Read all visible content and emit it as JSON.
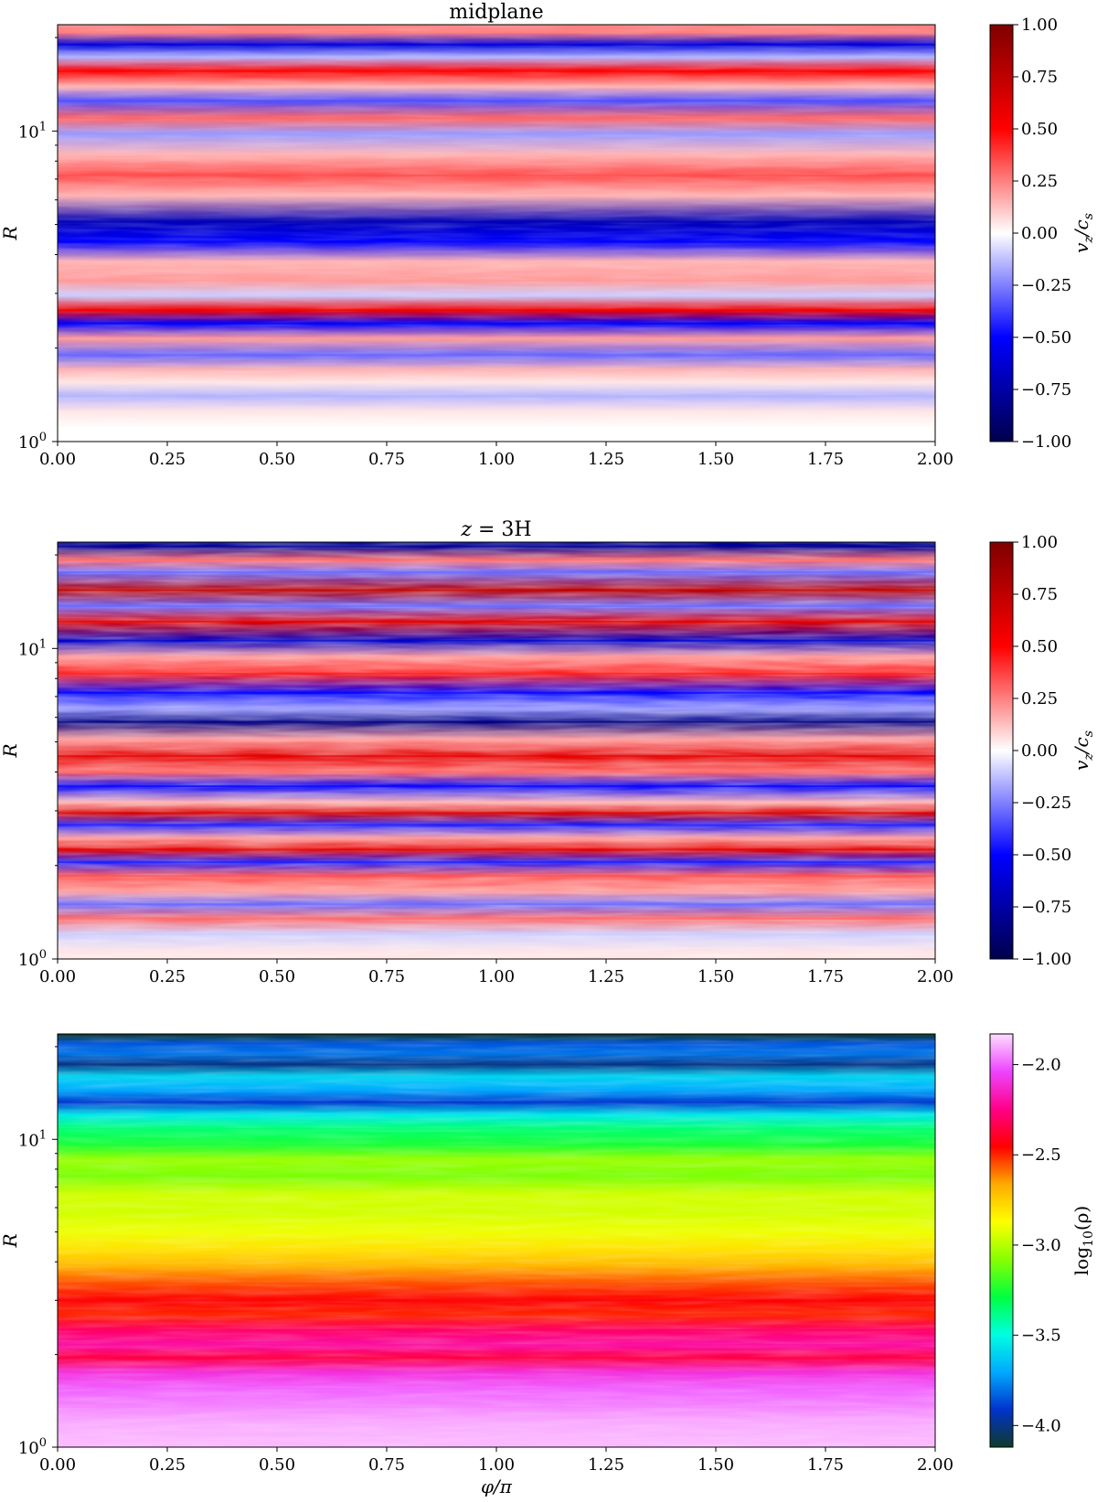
{
  "figure": {
    "xlabel": "φ/π"
  },
  "colormaps": {
    "seismic": [
      "#00004c",
      "#0000ff",
      "#ffffff",
      "#ff0000",
      "#7f0000"
    ],
    "gist_ncar": [
      "#0f3a2a",
      "#0033cc",
      "#00aaff",
      "#00ffe0",
      "#00ff40",
      "#88ff00",
      "#ffff00",
      "#ffaa00",
      "#ff0000",
      "#ff0088",
      "#ee44ff",
      "#ffddff"
    ]
  },
  "chart_data": [
    {
      "type": "heatmap",
      "title": "midplane",
      "xlabel": "",
      "ylabel": "R",
      "yscale": "log",
      "xlim": [
        0,
        2
      ],
      "ylim": [
        1,
        22
      ],
      "xticks": [
        "0.00",
        "0.25",
        "0.50",
        "0.75",
        "1.00",
        "1.25",
        "1.50",
        "1.75",
        "2.00"
      ],
      "yticks": [
        {
          "value": 1,
          "base": "10",
          "exp": "0"
        },
        {
          "value": 10,
          "base": "10",
          "exp": "1"
        }
      ],
      "colorbar": {
        "label": "v_z/c_s",
        "label_main": "v",
        "label_sub": "z",
        "label_sep": "/c",
        "label_sub2": "s",
        "cmap": "seismic",
        "range": [
          -1,
          1
        ],
        "ticks": [
          {
            "value": 1.0,
            "label": "1.00"
          },
          {
            "value": 0.75,
            "label": "0.75"
          },
          {
            "value": 0.5,
            "label": "0.50"
          },
          {
            "value": 0.25,
            "label": "0.25"
          },
          {
            "value": 0.0,
            "label": "0.00"
          },
          {
            "value": -0.25,
            "label": "−0.25"
          },
          {
            "value": -0.5,
            "label": "−0.50"
          },
          {
            "value": -0.75,
            "label": "−0.75"
          },
          {
            "value": -1.0,
            "label": "−1.00"
          }
        ]
      },
      "bands": [
        {
          "R": 20.8,
          "v": 0.25
        },
        {
          "R": 19.0,
          "v": -0.6
        },
        {
          "R": 17.3,
          "v": -0.15
        },
        {
          "R": 15.6,
          "v": 0.5
        },
        {
          "R": 13.9,
          "v": 0.15
        },
        {
          "R": 12.5,
          "v": -0.35
        },
        {
          "R": 11.0,
          "v": 0.3
        },
        {
          "R": 9.8,
          "v": -0.2
        },
        {
          "R": 8.4,
          "v": 0.15
        },
        {
          "R": 7.2,
          "v": 0.35
        },
        {
          "R": 6.2,
          "v": 0.15
        },
        {
          "R": 5.1,
          "v": -0.7
        },
        {
          "R": 4.4,
          "v": -0.5
        },
        {
          "R": 3.8,
          "v": 0.15
        },
        {
          "R": 3.3,
          "v": 0.2
        },
        {
          "R": 2.95,
          "v": -0.1
        },
        {
          "R": 2.65,
          "v": 0.55
        },
        {
          "R": 2.4,
          "v": -0.5
        },
        {
          "R": 2.15,
          "v": 0.2
        },
        {
          "R": 1.9,
          "v": -0.3
        },
        {
          "R": 1.7,
          "v": 0.15
        },
        {
          "R": 1.55,
          "v": 0.05
        },
        {
          "R": 1.4,
          "v": -0.15
        },
        {
          "R": 1.25,
          "v": 0.05
        },
        {
          "R": 1.1,
          "v": 0.0
        }
      ]
    },
    {
      "type": "heatmap",
      "title": "z = 3H",
      "title_main": "z",
      "title_rest": " = 3H",
      "xlabel": "",
      "ylabel": "R",
      "yscale": "log",
      "xlim": [
        0,
        2
      ],
      "ylim": [
        1,
        22
      ],
      "xticks": [
        "0.00",
        "0.25",
        "0.50",
        "0.75",
        "1.00",
        "1.25",
        "1.50",
        "1.75",
        "2.00"
      ],
      "yticks": [
        {
          "value": 1,
          "base": "10",
          "exp": "0"
        },
        {
          "value": 10,
          "base": "10",
          "exp": "1"
        }
      ],
      "colorbar": {
        "label": "v_z/c_s",
        "label_main": "v",
        "label_sub": "z",
        "label_sep": "/c",
        "label_sub2": "s",
        "cmap": "seismic",
        "range": [
          -1,
          1
        ],
        "ticks": [
          {
            "value": 1.0,
            "label": "1.00"
          },
          {
            "value": 0.75,
            "label": "0.75"
          },
          {
            "value": 0.5,
            "label": "0.50"
          },
          {
            "value": 0.25,
            "label": "0.25"
          },
          {
            "value": 0.0,
            "label": "0.00"
          },
          {
            "value": -0.25,
            "label": "−0.25"
          },
          {
            "value": -0.5,
            "label": "−0.50"
          },
          {
            "value": -0.75,
            "label": "−0.75"
          },
          {
            "value": -1.0,
            "label": "−1.00"
          }
        ]
      },
      "bands": [
        {
          "R": 21.3,
          "v": -0.8
        },
        {
          "R": 19.3,
          "v": 0.3
        },
        {
          "R": 17.6,
          "v": -0.3
        },
        {
          "R": 15.4,
          "v": 0.75
        },
        {
          "R": 13.7,
          "v": -0.3
        },
        {
          "R": 12.2,
          "v": 0.6
        },
        {
          "R": 10.6,
          "v": -0.65
        },
        {
          "R": 9.4,
          "v": 0.2
        },
        {
          "R": 8.3,
          "v": 0.45
        },
        {
          "R": 7.2,
          "v": -0.5
        },
        {
          "R": 6.4,
          "v": -0.2
        },
        {
          "R": 5.8,
          "v": -0.85
        },
        {
          "R": 5.1,
          "v": 0.2
        },
        {
          "R": 4.5,
          "v": 0.6
        },
        {
          "R": 4.0,
          "v": 0.3
        },
        {
          "R": 3.6,
          "v": -0.5
        },
        {
          "R": 3.2,
          "v": 0.15
        },
        {
          "R": 2.95,
          "v": 0.65
        },
        {
          "R": 2.7,
          "v": -0.45
        },
        {
          "R": 2.45,
          "v": 0.2
        },
        {
          "R": 2.25,
          "v": 0.6
        },
        {
          "R": 2.05,
          "v": -0.45
        },
        {
          "R": 1.85,
          "v": 0.35
        },
        {
          "R": 1.65,
          "v": 0.2
        },
        {
          "R": 1.5,
          "v": -0.3
        },
        {
          "R": 1.35,
          "v": 0.3
        },
        {
          "R": 1.2,
          "v": -0.1
        },
        {
          "R": 1.05,
          "v": 0.05
        }
      ]
    },
    {
      "type": "heatmap",
      "title": "",
      "xlabel": "φ/π",
      "ylabel": "R",
      "yscale": "log",
      "xlim": [
        0,
        2
      ],
      "ylim": [
        1,
        22
      ],
      "xticks": [
        "0.00",
        "0.25",
        "0.50",
        "0.75",
        "1.00",
        "1.25",
        "1.50",
        "1.75",
        "2.00"
      ],
      "yticks": [
        {
          "value": 1,
          "base": "10",
          "exp": "0"
        },
        {
          "value": 10,
          "base": "10",
          "exp": "1"
        }
      ],
      "colorbar": {
        "label": "log10(ρ)",
        "label_main": "log",
        "label_sub": "10",
        "label_sep": "(ρ)",
        "label_sub2": "",
        "cmap": "gist_ncar",
        "range": [
          -4.12,
          -1.83
        ],
        "ticks": [
          {
            "value": -2.0,
            "label": "−2.0"
          },
          {
            "value": -2.5,
            "label": "−2.5"
          },
          {
            "value": -3.0,
            "label": "−3.0"
          },
          {
            "value": -3.5,
            "label": "−3.5"
          },
          {
            "value": -4.0,
            "label": "−4.0"
          }
        ]
      },
      "bands": [
        {
          "R": 21.8,
          "v": -4.1
        },
        {
          "R": 20.5,
          "v": -3.85
        },
        {
          "R": 19.0,
          "v": -3.8
        },
        {
          "R": 17.5,
          "v": -4.0
        },
        {
          "R": 16.0,
          "v": -3.6
        },
        {
          "R": 14.5,
          "v": -3.7
        },
        {
          "R": 13.2,
          "v": -3.9
        },
        {
          "R": 12.0,
          "v": -3.55
        },
        {
          "R": 10.8,
          "v": -3.35
        },
        {
          "R": 9.6,
          "v": -3.25
        },
        {
          "R": 8.6,
          "v": -3.05
        },
        {
          "R": 7.6,
          "v": -3.1
        },
        {
          "R": 6.6,
          "v": -2.95
        },
        {
          "R": 5.8,
          "v": -2.95
        },
        {
          "R": 5.0,
          "v": -2.9
        },
        {
          "R": 4.4,
          "v": -2.8
        },
        {
          "R": 3.9,
          "v": -2.7
        },
        {
          "R": 3.4,
          "v": -2.55
        },
        {
          "R": 3.0,
          "v": -2.45
        },
        {
          "R": 2.7,
          "v": -2.5
        },
        {
          "R": 2.4,
          "v": -2.3
        },
        {
          "R": 2.15,
          "v": -2.2
        },
        {
          "R": 1.95,
          "v": -2.35
        },
        {
          "R": 1.75,
          "v": -2.1
        },
        {
          "R": 1.55,
          "v": -2.0
        },
        {
          "R": 1.35,
          "v": -1.95
        },
        {
          "R": 1.2,
          "v": -1.9
        },
        {
          "R": 1.05,
          "v": -1.88
        }
      ]
    }
  ]
}
